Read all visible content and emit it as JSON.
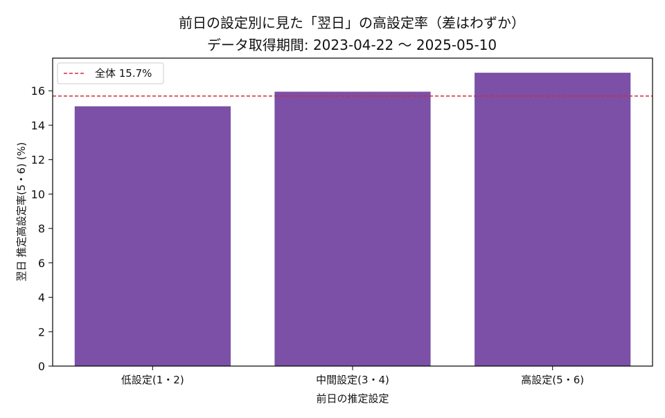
{
  "chart_data": {
    "type": "bar",
    "title": "前日の設定別に見た「翌日」の高設定率（差はわずか）",
    "subtitle": "データ取得期間: 2023-04-22 〜 2025-05-10",
    "xlabel": "前日の推定設定",
    "ylabel": "翌日 推定高設定率(5・6) (%)",
    "categories": [
      "低設定(1・2)",
      "中間設定(3・4)",
      "高設定(5・6)"
    ],
    "series": [
      {
        "values": [
          15.1,
          15.95,
          17.05
        ]
      }
    ],
    "yticks": [
      0,
      2,
      4,
      6,
      8,
      10,
      12,
      14,
      16
    ],
    "ylim": [
      0,
      17.9
    ],
    "reference_line": {
      "value": 15.7,
      "label": "全体 15.7%"
    },
    "legend_position": "top-left",
    "grid": false,
    "colors": {
      "bar": "#7B50A6",
      "reference": "#D62839",
      "axis": "#000000"
    }
  }
}
